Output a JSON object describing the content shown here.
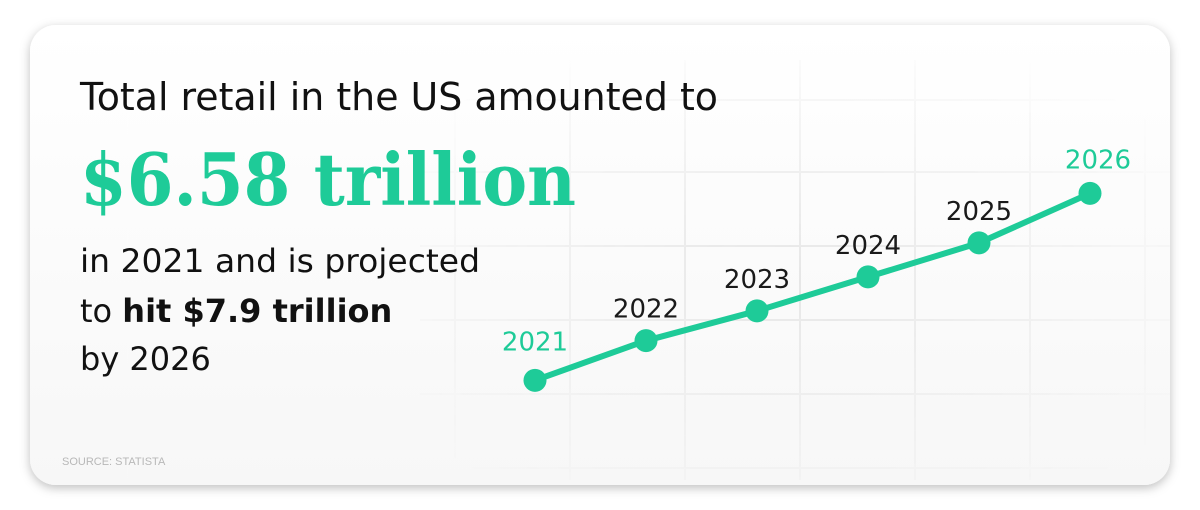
{
  "headline": {
    "line1": "Total retail in the US amounted to",
    "highlight": "$6.58 trillion",
    "line3": "in 2021 and is projected",
    "line4_start": "to",
    "line4_bold": "hit $7.9 trillion",
    "line5": "by 2026"
  },
  "source": "SOURCE: STATISTA",
  "chart_data": {
    "type": "line",
    "categories": [
      "2021",
      "2022",
      "2023",
      "2024",
      "2025",
      "2026"
    ],
    "series": [
      {
        "name": null,
        "color": "#1ecb98",
        "values": [
          6.58,
          6.86,
          7.07,
          7.31,
          7.55,
          7.9
        ]
      }
    ],
    "label_colors": [
      "#1ecb98",
      "#1a1a1a",
      "#1a1a1a",
      "#1a1a1a",
      "#1a1a1a",
      "#1ecb98"
    ],
    "ylim": [
      6.3,
      8.1
    ]
  }
}
